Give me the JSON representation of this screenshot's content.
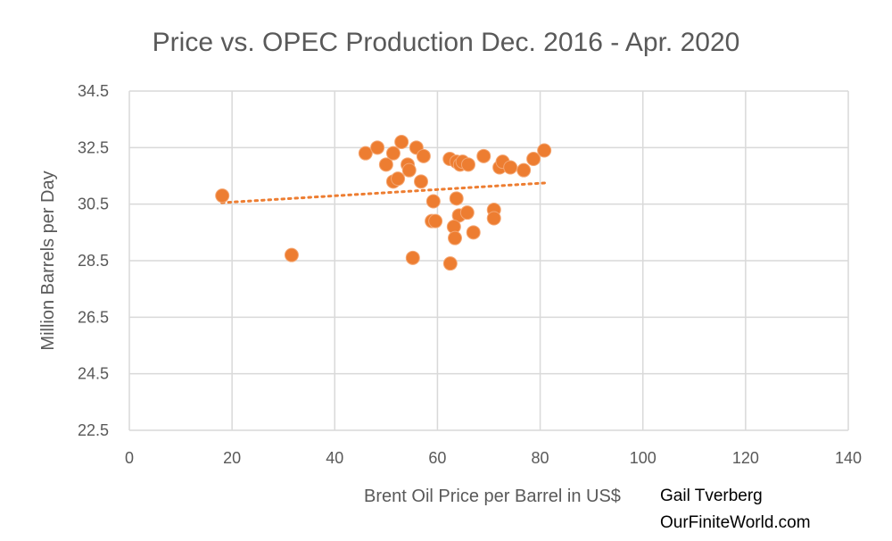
{
  "chart_data": {
    "type": "scatter",
    "title": "Price vs. OPEC Production  Dec. 2016 - Apr. 2020",
    "xlabel": "Brent Oil Price per Barrel in US$",
    "ylabel": "Million Barrels per Day",
    "xlim": [
      0,
      140
    ],
    "ylim": [
      22.5,
      34.5
    ],
    "xticks": [
      0,
      20,
      40,
      60,
      80,
      100,
      120,
      140
    ],
    "yticks": [
      22.5,
      24.5,
      26.5,
      28.5,
      30.5,
      32.5,
      34.5
    ],
    "ytick_labels": [
      "22.5",
      "24.5",
      "26.5",
      "28.5",
      "30.5",
      "32.5",
      "34.5"
    ],
    "grid": true,
    "marker_color": "#ED7D31",
    "trendline": {
      "type": "linear",
      "x": [
        18,
        81
      ],
      "y": [
        30.55,
        31.25
      ]
    },
    "points": [
      [
        18.1,
        30.8
      ],
      [
        31.6,
        28.7
      ],
      [
        46.0,
        32.3
      ],
      [
        48.3,
        32.5
      ],
      [
        50.0,
        31.9
      ],
      [
        51.4,
        32.3
      ],
      [
        51.4,
        31.3
      ],
      [
        52.3,
        31.4
      ],
      [
        53.0,
        32.7
      ],
      [
        54.2,
        31.9
      ],
      [
        54.5,
        31.7
      ],
      [
        55.9,
        32.5
      ],
      [
        57.3,
        32.2
      ],
      [
        56.8,
        31.3
      ],
      [
        55.2,
        28.6
      ],
      [
        59.2,
        30.6
      ],
      [
        58.9,
        29.9
      ],
      [
        59.6,
        29.9
      ],
      [
        62.4,
        32.1
      ],
      [
        63.7,
        32.0
      ],
      [
        64.4,
        31.9
      ],
      [
        64.9,
        32.0
      ],
      [
        66.0,
        31.9
      ],
      [
        63.7,
        30.7
      ],
      [
        64.2,
        30.1
      ],
      [
        63.2,
        29.7
      ],
      [
        63.4,
        29.3
      ],
      [
        65.8,
        30.2
      ],
      [
        67.0,
        29.5
      ],
      [
        62.5,
        28.4
      ],
      [
        69.0,
        32.2
      ],
      [
        71.0,
        30.3
      ],
      [
        71.0,
        30.0
      ],
      [
        72.1,
        31.8
      ],
      [
        72.7,
        32.0
      ],
      [
        74.2,
        31.8
      ],
      [
        76.8,
        31.7
      ],
      [
        78.7,
        32.1
      ],
      [
        80.8,
        32.4
      ]
    ]
  },
  "credit": {
    "author": "Gail Tverberg",
    "site": "OurFiniteWorld.com"
  }
}
